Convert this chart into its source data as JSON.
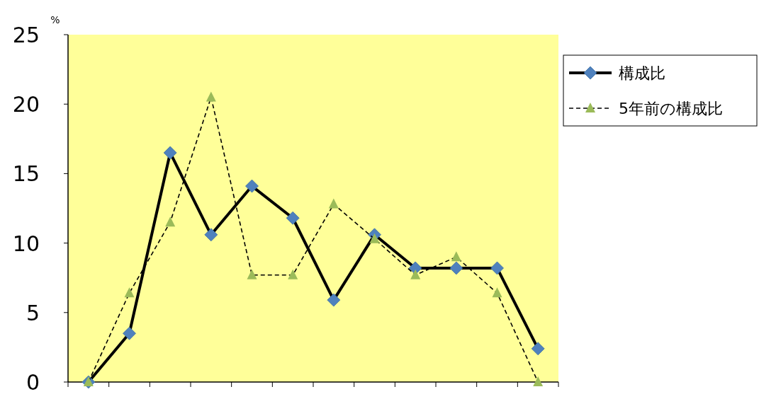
{
  "chart_data": {
    "type": "line",
    "ylabel": "%",
    "categories": [
      null,
      null,
      null,
      null,
      null,
      null,
      null,
      null,
      null,
      null,
      null,
      null
    ],
    "ylim": [
      0,
      25
    ],
    "yticks": [
      0,
      5,
      10,
      15,
      20,
      25
    ],
    "tick_labels": "y",
    "grid": false,
    "legend": "top right",
    "series": [
      {
        "name": "構成比",
        "color": "#4f81bd",
        "marker": "diamond",
        "line_style": "solid",
        "values": [
          0,
          3.5,
          16.5,
          10.6,
          14.1,
          11.8,
          5.9,
          10.6,
          8.2,
          8.2,
          8.2,
          2.4
        ]
      },
      {
        "name": "5年前の構成比",
        "color": "#9bbb59",
        "marker": "triangle",
        "line_style": "dashed",
        "values": [
          0,
          6.4,
          11.5,
          20.5,
          7.7,
          7.7,
          12.8,
          10.3,
          7.7,
          9.0,
          6.4,
          0
        ]
      }
    ]
  }
}
